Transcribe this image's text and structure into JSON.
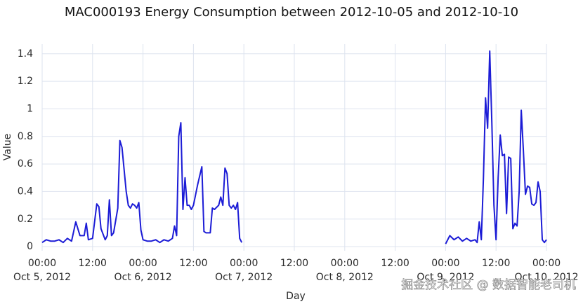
{
  "chart_data": {
    "type": "line",
    "title": "MAC000193 Energy Consumption between 2012-10-05 and 2012-10-10",
    "x_label": "Day",
    "y_label": "Value",
    "color": "#1c1cd6",
    "grid": true,
    "watermark": "掘金技术社区 @ 数据智能老司机",
    "xlim": [
      "2012-10-05 00:00",
      "2012-10-10 00:00"
    ],
    "ylim": [
      -0.03,
      1.47
    ],
    "yticks": [
      0,
      0.2,
      0.4,
      0.6,
      0.8,
      1,
      1.2,
      1.4
    ],
    "xticks": [
      {
        "value": "2012-10-05 00:00",
        "label": "00:00",
        "date": "Oct 5, 2012"
      },
      {
        "value": "2012-10-05 12:00",
        "label": "12:00"
      },
      {
        "value": "2012-10-06 00:00",
        "label": "00:00",
        "date": "Oct 6, 2012"
      },
      {
        "value": "2012-10-06 12:00",
        "label": "12:00"
      },
      {
        "value": "2012-10-07 00:00",
        "label": "00:00",
        "date": "Oct 7, 2012"
      },
      {
        "value": "2012-10-07 12:00",
        "label": "12:00"
      },
      {
        "value": "2012-10-08 00:00",
        "label": "00:00",
        "date": "Oct 8, 2012"
      },
      {
        "value": "2012-10-08 12:00",
        "label": "12:00"
      },
      {
        "value": "2012-10-09 00:00",
        "label": "00:00",
        "date": "Oct 9, 2012"
      },
      {
        "value": "2012-10-09 12:00",
        "label": "12:00"
      },
      {
        "value": "2012-10-10 00:00",
        "label": "00:00",
        "date": "Oct 10, 2012"
      }
    ],
    "x": [
      "2012-10-05 00:00",
      "2012-10-05 01:00",
      "2012-10-05 02:00",
      "2012-10-05 03:00",
      "2012-10-05 04:00",
      "2012-10-05 05:00",
      "2012-10-05 06:00",
      "2012-10-05 07:00",
      "2012-10-05 08:00",
      "2012-10-05 09:00",
      "2012-10-05 10:00",
      "2012-10-05 10:30",
      "2012-10-05 11:00",
      "2012-10-05 12:00",
      "2012-10-05 13:00",
      "2012-10-05 13:30",
      "2012-10-05 14:00",
      "2012-10-05 15:00",
      "2012-10-05 15:30",
      "2012-10-05 16:00",
      "2012-10-05 16:30",
      "2012-10-05 17:00",
      "2012-10-05 18:00",
      "2012-10-05 18:30",
      "2012-10-05 19:00",
      "2012-10-05 20:00",
      "2012-10-05 20:30",
      "2012-10-05 21:00",
      "2012-10-05 21:30",
      "2012-10-05 22:00",
      "2012-10-05 22:30",
      "2012-10-05 23:00",
      "2012-10-05 23:30",
      "2012-10-06 00:00",
      "2012-10-06 01:00",
      "2012-10-06 02:00",
      "2012-10-06 03:00",
      "2012-10-06 04:00",
      "2012-10-06 05:00",
      "2012-10-06 06:00",
      "2012-10-06 07:00",
      "2012-10-06 07:30",
      "2012-10-06 08:00",
      "2012-10-06 08:30",
      "2012-10-06 09:00",
      "2012-10-06 09:30",
      "2012-10-06 10:00",
      "2012-10-06 10:30",
      "2012-10-06 11:00",
      "2012-10-06 11:30",
      "2012-10-06 12:00",
      "2012-10-06 13:00",
      "2012-10-06 14:00",
      "2012-10-06 14:30",
      "2012-10-06 15:00",
      "2012-10-06 16:00",
      "2012-10-06 16:30",
      "2012-10-06 17:00",
      "2012-10-06 18:00",
      "2012-10-06 18:30",
      "2012-10-06 19:00",
      "2012-10-06 19:30",
      "2012-10-06 20:00",
      "2012-10-06 20:30",
      "2012-10-06 21:00",
      "2012-10-06 21:30",
      "2012-10-06 22:00",
      "2012-10-06 22:30",
      "2012-10-06 23:00",
      "2012-10-06 23:30",
      "2012-10-08 00:00",
      "2012-10-09 00:00",
      "2012-10-09 01:00",
      "2012-10-09 02:00",
      "2012-10-09 03:00",
      "2012-10-09 04:00",
      "2012-10-09 05:00",
      "2012-10-09 06:00",
      "2012-10-09 07:00",
      "2012-10-09 07:30",
      "2012-10-09 08:00",
      "2012-10-09 08:30",
      "2012-10-09 09:00",
      "2012-10-09 09:30",
      "2012-10-09 10:00",
      "2012-10-09 10:30",
      "2012-10-09 11:00",
      "2012-10-09 11:30",
      "2012-10-09 12:00",
      "2012-10-09 12:30",
      "2012-10-09 13:00",
      "2012-10-09 13:30",
      "2012-10-09 14:00",
      "2012-10-09 14:30",
      "2012-10-09 15:00",
      "2012-10-09 15:30",
      "2012-10-09 16:00",
      "2012-10-09 16:30",
      "2012-10-09 17:00",
      "2012-10-09 17:30",
      "2012-10-09 18:00",
      "2012-10-09 18:30",
      "2012-10-09 19:00",
      "2012-10-09 19:30",
      "2012-10-09 20:00",
      "2012-10-09 20:30",
      "2012-10-09 21:00",
      "2012-10-09 21:30",
      "2012-10-09 22:00",
      "2012-10-09 22:30",
      "2012-10-09 23:00",
      "2012-10-09 23:30",
      "2012-10-10 00:00"
    ],
    "values": [
      0.03,
      0.05,
      0.04,
      0.04,
      0.05,
      0.03,
      0.06,
      0.04,
      0.18,
      0.08,
      0.08,
      0.17,
      0.05,
      0.06,
      0.31,
      0.29,
      0.13,
      0.05,
      0.08,
      0.34,
      0.08,
      0.1,
      0.28,
      0.77,
      0.72,
      0.4,
      0.3,
      0.28,
      0.31,
      0.3,
      0.28,
      0.32,
      0.12,
      0.05,
      0.04,
      0.04,
      0.05,
      0.03,
      0.05,
      0.04,
      0.06,
      0.15,
      0.08,
      0.8,
      0.9,
      0.27,
      0.5,
      0.3,
      0.3,
      0.27,
      0.3,
      0.45,
      0.58,
      0.11,
      0.1,
      0.1,
      0.28,
      0.27,
      0.3,
      0.36,
      0.3,
      0.57,
      0.53,
      0.3,
      0.28,
      0.3,
      0.27,
      0.32,
      0.06,
      0.03,
      null,
      0.02,
      0.08,
      0.05,
      0.07,
      0.04,
      0.06,
      0.04,
      0.05,
      0.03,
      0.18,
      0.05,
      0.5,
      1.08,
      0.86,
      1.42,
      0.9,
      0.3,
      0.05,
      0.5,
      0.81,
      0.66,
      0.67,
      0.24,
      0.65,
      0.64,
      0.13,
      0.17,
      0.15,
      0.4,
      0.99,
      0.7,
      0.38,
      0.44,
      0.43,
      0.31,
      0.3,
      0.32,
      0.47,
      0.4,
      0.05,
      0.03,
      0.05
    ]
  }
}
